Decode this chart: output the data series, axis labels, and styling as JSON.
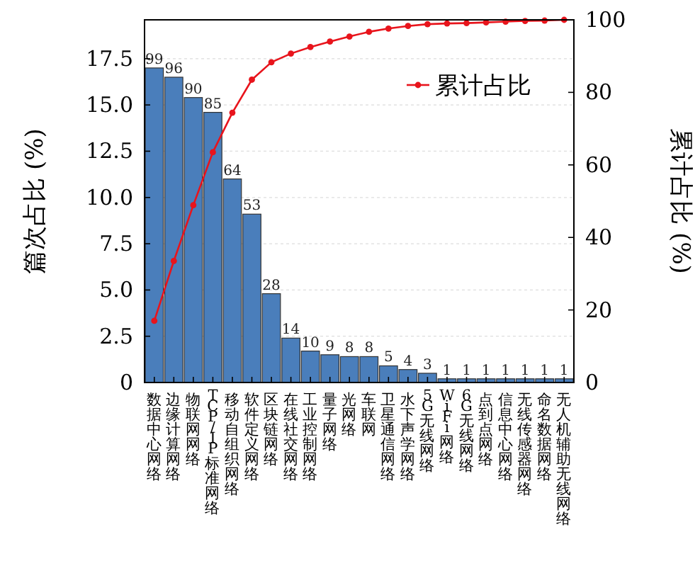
{
  "chart_data": {
    "type": "bar",
    "ylabel": "篇次占比 (%)",
    "y2label": "累计占比 (%)",
    "categories": [
      "数据中心网络",
      "边缘计算网络",
      "物联网网络",
      "TCP/IP标准网络",
      "移动自组织网络",
      "软件定义网络",
      "区块链网络",
      "在线社交网络",
      "工业控制网络",
      "量子网络",
      "光网络",
      "车联网",
      "卫星通信网络",
      "水下声学网络",
      "5G无线网络",
      "WiFi网络",
      "6G无线网络",
      "点到点网络",
      "信息中心网络",
      "无线传感器网络",
      "命名数据网络",
      "无人机辅助无线网络"
    ],
    "series": [
      {
        "color": "#4a7ebb",
        "values": [
          17.0,
          16.5,
          15.4,
          14.6,
          11.0,
          9.1,
          4.8,
          2.4,
          1.7,
          1.5,
          1.4,
          1.4,
          0.9,
          0.7,
          0.5,
          0.2,
          0.2,
          0.2,
          0.2,
          0.2,
          0.2,
          0.2
        ]
      },
      {
        "type": "line",
        "name": "累计占比",
        "color": "#e8141c",
        "axis": "y2",
        "marker": "circle",
        "values": [
          17.0,
          33.5,
          48.9,
          63.5,
          74.4,
          83.5,
          88.3,
          90.7,
          92.5,
          94.0,
          95.4,
          96.7,
          97.6,
          98.3,
          98.8,
          99.0,
          99.1,
          99.3,
          99.5,
          99.7,
          99.8,
          100
        ]
      }
    ],
    "annotations": [
      {
        "text": "99",
        "x": "数据中心网络",
        "y": 17.0
      },
      {
        "text": "96",
        "x": "边缘计算网络",
        "y": 16.5
      },
      {
        "text": "90",
        "x": "物联网网络",
        "y": 15.4
      },
      {
        "text": "85",
        "x": "TCP/IP标准网络",
        "y": 14.6
      },
      {
        "text": "64",
        "x": "移动自组织网络",
        "y": 11.0
      },
      {
        "text": "53",
        "x": "软件定义网络",
        "y": 9.1
      },
      {
        "text": "28",
        "x": "区块链网络",
        "y": 4.8
      },
      {
        "text": "14",
        "x": "在线社交网络",
        "y": 2.4
      },
      {
        "text": "10",
        "x": "工业控制网络",
        "y": 1.7
      },
      {
        "text": "9",
        "x": "量子网络",
        "y": 1.5
      },
      {
        "text": "8",
        "x": "光网络",
        "y": 1.4
      },
      {
        "text": "8",
        "x": "车联网",
        "y": 1.4
      },
      {
        "text": "5",
        "x": "卫星通信网络",
        "y": 0.9
      },
      {
        "text": "4",
        "x": "水下声学网络",
        "y": 0.7
      },
      {
        "text": "3",
        "x": "5G无线网络",
        "y": 0.5
      },
      {
        "text": "1",
        "x": "WiFi网络",
        "y": 0.2
      },
      {
        "text": "1",
        "x": "6G无线网络",
        "y": 0.2
      },
      {
        "text": "1",
        "x": "点到点网络",
        "y": 0.2
      },
      {
        "text": "1",
        "x": "信息中心网络",
        "y": 0.2
      },
      {
        "text": "1",
        "x": "无线传感器网络",
        "y": 0.2
      },
      {
        "text": "1",
        "x": "命名数据网络",
        "y": 0.2
      },
      {
        "text": "1",
        "x": "无人机辅助无线网络",
        "y": 0.2
      }
    ],
    "ylim": [
      0,
      19.6
    ],
    "yticks": [
      0,
      {
        "value": 2.5,
        "label": "2.5"
      },
      {
        "value": 5,
        "label": "5.0"
      },
      {
        "value": 7.5,
        "label": "7.5"
      },
      {
        "value": 10,
        "label": "10.0"
      },
      {
        "value": 12.5,
        "label": "12.5"
      },
      {
        "value": 15,
        "label": "15.0"
      },
      {
        "value": 17.5,
        "label": "17.5"
      }
    ],
    "y2lim": [
      0,
      100
    ],
    "y2ticks": [
      0,
      20,
      40,
      60,
      80,
      100
    ],
    "grid": "y",
    "legend": "top right"
  }
}
